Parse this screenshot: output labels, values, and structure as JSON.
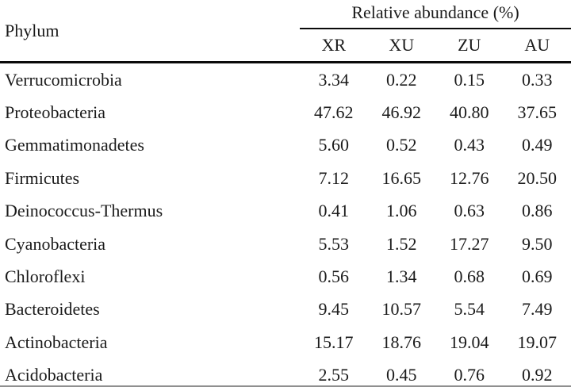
{
  "table": {
    "phylum_header": "Phylum",
    "group_header": "Relative abundance (%)",
    "columns": [
      "XR",
      "XU",
      "ZU",
      "AU"
    ],
    "rows": [
      {
        "phylum": "Verrucomicrobia",
        "values": [
          "3.34",
          "0.22",
          "0.15",
          "0.33"
        ]
      },
      {
        "phylum": "Proteobacteria",
        "values": [
          "47.62",
          "46.92",
          "40.80",
          "37.65"
        ]
      },
      {
        "phylum": "Gemmatimonadetes",
        "values": [
          "5.60",
          "0.52",
          "0.43",
          "0.49"
        ]
      },
      {
        "phylum": "Firmicutes",
        "values": [
          "7.12",
          "16.65",
          "12.76",
          "20.50"
        ]
      },
      {
        "phylum": "Deinococcus-Thermus",
        "values": [
          "0.41",
          "1.06",
          "0.63",
          "0.86"
        ]
      },
      {
        "phylum": "Cyanobacteria",
        "values": [
          "5.53",
          "1.52",
          "17.27",
          "9.50"
        ]
      },
      {
        "phylum": "Chloroflexi",
        "values": [
          "0.56",
          "1.34",
          "0.68",
          "0.69"
        ]
      },
      {
        "phylum": "Bacteroidetes",
        "values": [
          "9.45",
          "10.57",
          "5.54",
          "7.49"
        ]
      },
      {
        "phylum": "Actinobacteria",
        "values": [
          "15.17",
          "18.76",
          "19.04",
          "19.07"
        ]
      },
      {
        "phylum": "Acidobacteria",
        "values": [
          "2.55",
          "0.45",
          "0.76",
          "0.92"
        ]
      }
    ],
    "colors": {
      "background": "#ffffff",
      "text": "#1b1b1b",
      "rule": "#0a0a0a"
    }
  }
}
